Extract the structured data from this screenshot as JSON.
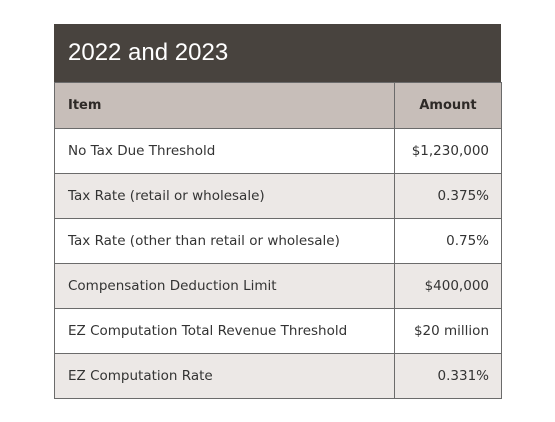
{
  "title": "2022 and 2023",
  "columns": [
    "Item",
    "Amount"
  ],
  "rows": [
    {
      "item": "No Tax Due Threshold",
      "amount": "$1,230,000"
    },
    {
      "item": "Tax Rate (retail or wholesale)",
      "amount": "0.375%"
    },
    {
      "item": "Tax Rate (other than retail or wholesale)",
      "amount": "0.75%"
    },
    {
      "item": "Compensation Deduction Limit",
      "amount": "$400,000"
    },
    {
      "item": "EZ Computation Total Revenue Threshold",
      "amount": "$20 million"
    },
    {
      "item": "EZ Computation Rate",
      "amount": "0.331%"
    }
  ]
}
